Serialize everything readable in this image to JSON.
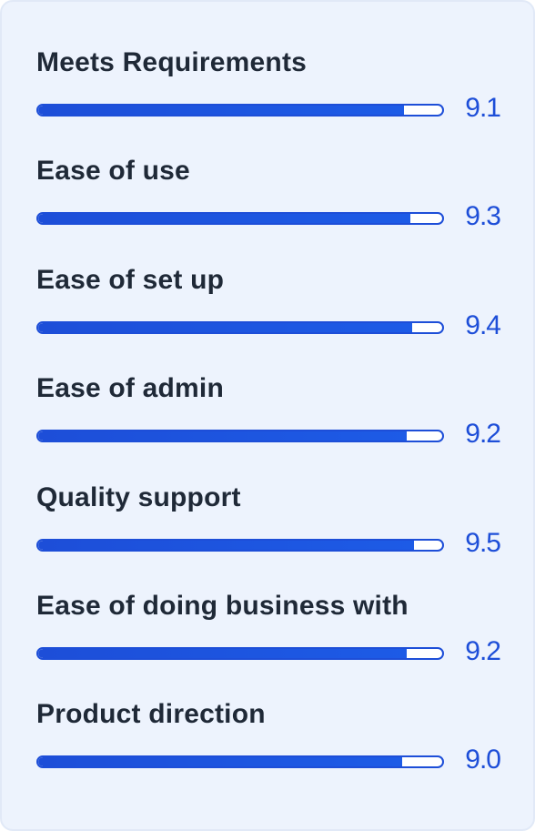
{
  "metrics": [
    {
      "label": "Meets Requirements",
      "score": "9.1",
      "fill": 0.905
    },
    {
      "label": "Ease of use",
      "score": "9.3",
      "fill": 0.922
    },
    {
      "label": "Ease of set up",
      "score": "9.4",
      "fill": 0.926
    },
    {
      "label": "Ease of admin",
      "score": "9.2",
      "fill": 0.913
    },
    {
      "label": "Quality support",
      "score": "9.5",
      "fill": 0.93
    },
    {
      "label": "Ease of doing business with",
      "score": "9.2",
      "fill": 0.913
    },
    {
      "label": "Product direction",
      "score": "9.0",
      "fill": 0.902
    }
  ],
  "colors": {
    "accent": "#1d4ed8",
    "background": "#edf3fd",
    "label_text": "#1f2937"
  }
}
